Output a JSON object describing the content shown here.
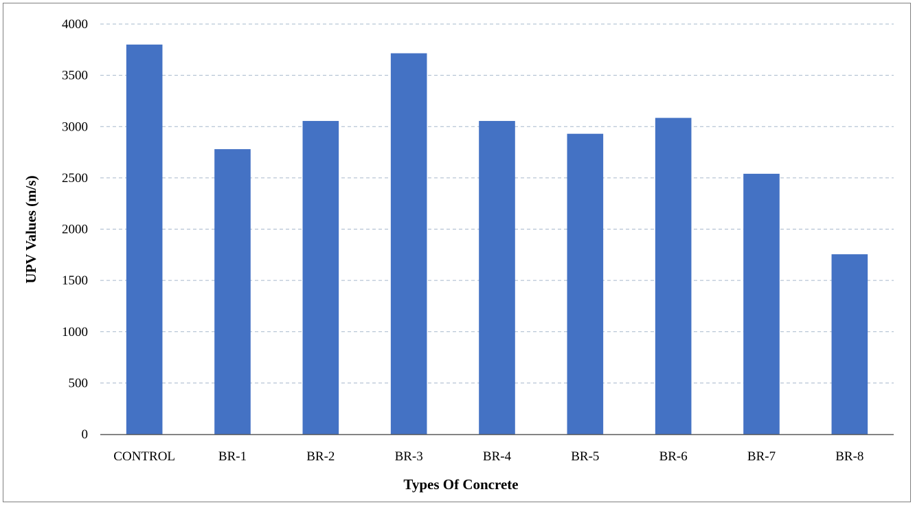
{
  "chart_data": {
    "type": "bar",
    "title": "",
    "xlabel": "Types Of Concrete",
    "ylabel": "UPV Values (m/s)",
    "categories": [
      "CONTROL",
      "BR-1",
      "BR-2",
      "BR-3",
      "BR-4",
      "BR-5",
      "BR-6",
      "BR-7",
      "BR-8"
    ],
    "values": [
      3800,
      2780,
      3055,
      3715,
      3055,
      2930,
      3085,
      2540,
      1755
    ],
    "ylim": [
      0,
      4000
    ],
    "yticks": [
      "0",
      "500",
      "1000",
      "1500",
      "2000",
      "2500",
      "3000",
      "3500",
      "4000"
    ],
    "ytick_values": [
      0,
      500,
      1000,
      1500,
      2000,
      2500,
      3000,
      3500,
      4000
    ],
    "grid": true,
    "legend": "none",
    "bar_color": "#4472C4",
    "grid_color": "#A6B8CC"
  }
}
